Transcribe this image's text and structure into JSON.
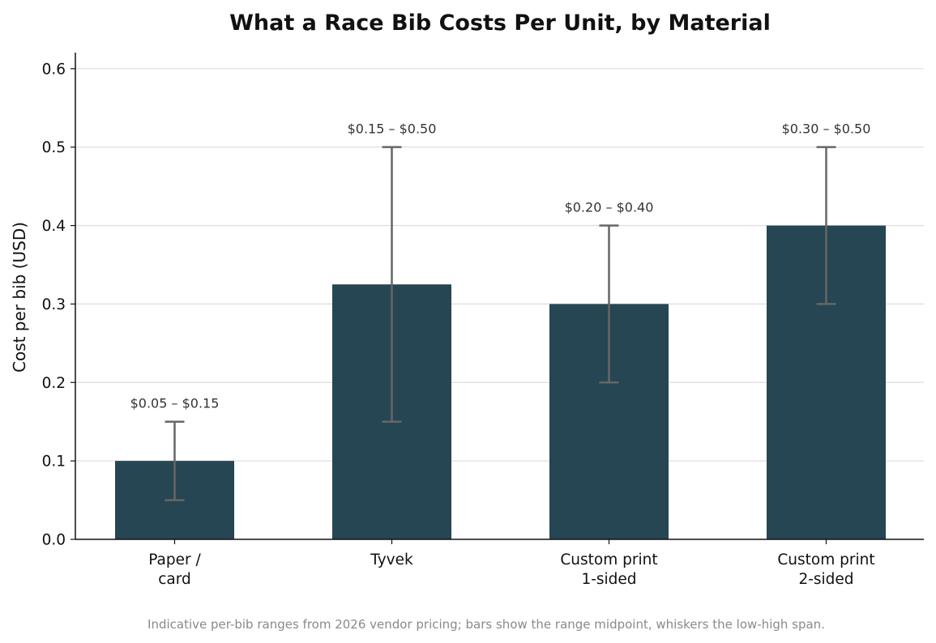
{
  "chart_data": {
    "type": "bar",
    "title": "What a Race Bib Costs Per Unit, by Material",
    "xlabel": "",
    "ylabel": "Cost per bib (USD)",
    "ylim": [
      0,
      0.62
    ],
    "yticks": [
      "0.0",
      "0.1",
      "0.2",
      "0.3",
      "0.4",
      "0.5",
      "0.6"
    ],
    "ytick_values": [
      0,
      0.1,
      0.2,
      0.3,
      0.4,
      0.5,
      0.6
    ],
    "grid": "horizontal",
    "categories": [
      [
        "Paper /",
        "card"
      ],
      [
        "Tyvek"
      ],
      [
        "Custom print",
        "1-sided"
      ],
      [
        "Custom print",
        "2-sided"
      ]
    ],
    "values": [
      0.1,
      0.325,
      0.3,
      0.4
    ],
    "low": [
      0.05,
      0.15,
      0.2,
      0.3
    ],
    "high": [
      0.15,
      0.5,
      0.4,
      0.5
    ],
    "range_labels": [
      "$0.05 – $0.15",
      "$0.15 – $0.50",
      "$0.20 – $0.40",
      "$0.30 – $0.50"
    ],
    "caption": "Indicative per-bib ranges from 2026 vendor pricing; bars show the range midpoint, whiskers the low-high span.",
    "colors": {
      "bar": "#264653",
      "whisker": "#666666",
      "grid": "#dddddd",
      "axis": "#111111"
    }
  }
}
